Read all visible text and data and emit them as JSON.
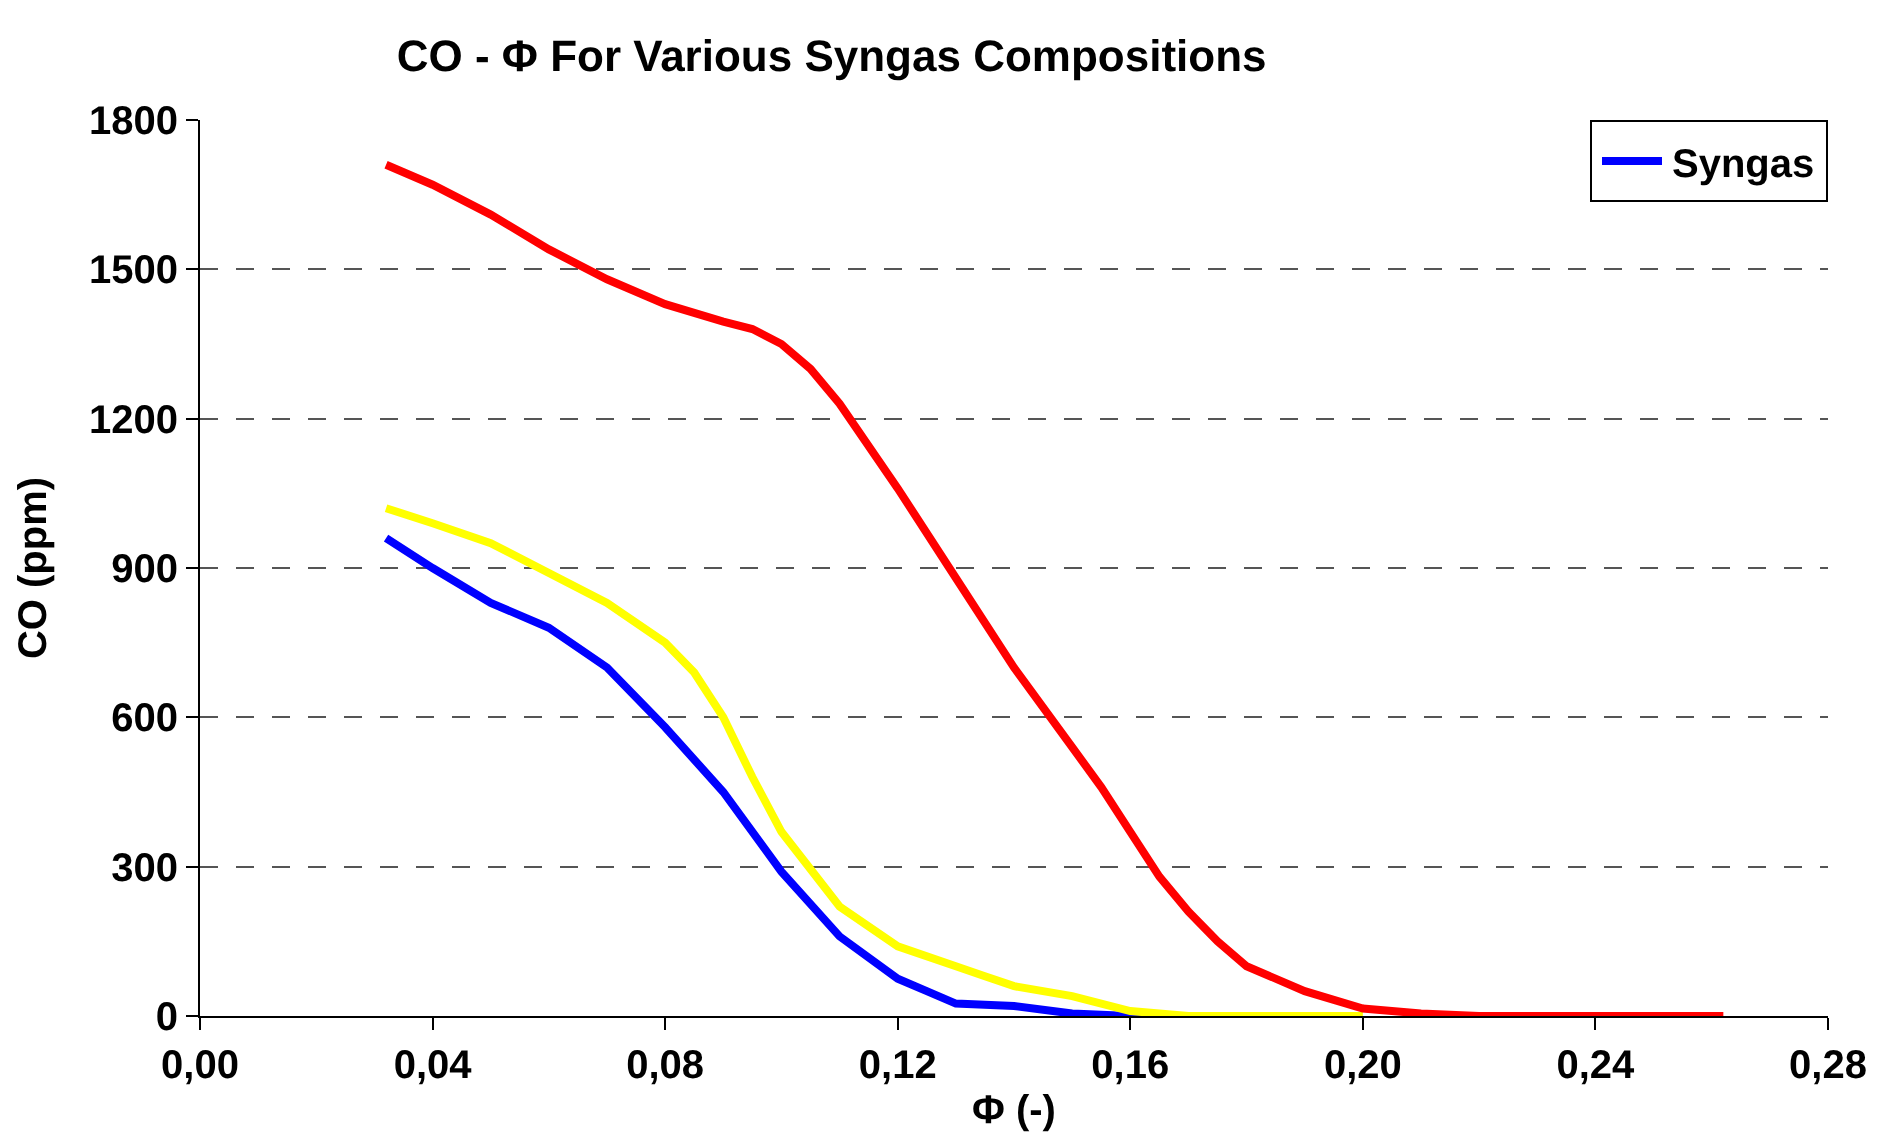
{
  "chart_data": {
    "type": "line",
    "title": "CO - Φ For Various Syngas Compositions",
    "xlabel": "Φ (-)",
    "ylabel": "CO (ppm)",
    "xlim": [
      0,
      0.28
    ],
    "ylim": [
      0,
      1800
    ],
    "xticks": [
      {
        "value": 0,
        "label": "0,00"
      },
      {
        "value": 0.04,
        "label": "0,04"
      },
      {
        "value": 0.08,
        "label": "0,08"
      },
      {
        "value": 0.12,
        "label": "0,12"
      },
      {
        "value": 0.16,
        "label": "0,16"
      },
      {
        "value": 0.2,
        "label": "0,20"
      },
      {
        "value": 0.24,
        "label": "0,24"
      },
      {
        "value": 0.28,
        "label": "0,28"
      }
    ],
    "yticks": [
      0,
      300,
      600,
      900,
      1200,
      1500,
      1800
    ],
    "grid": "y",
    "legend": "top right",
    "line_style": "solid",
    "marker": "none",
    "series": [
      {
        "name": "Syngas",
        "color": "#0000ff",
        "x": [
          0.032,
          0.04,
          0.05,
          0.06,
          0.07,
          0.08,
          0.09,
          0.1,
          0.11,
          0.12,
          0.125,
          0.13,
          0.14,
          0.15,
          0.16,
          0.17
        ],
        "values": [
          960,
          900,
          830,
          780,
          700,
          580,
          450,
          290,
          160,
          75,
          50,
          25,
          20,
          5,
          0,
          0
        ]
      },
      {
        "color": "#ffff00",
        "x": [
          0.032,
          0.04,
          0.05,
          0.06,
          0.07,
          0.08,
          0.085,
          0.09,
          0.095,
          0.1,
          0.11,
          0.12,
          0.13,
          0.135,
          0.14,
          0.15,
          0.16,
          0.17,
          0.18,
          0.19,
          0.2
        ],
        "values": [
          1020,
          990,
          950,
          890,
          830,
          750,
          690,
          600,
          480,
          370,
          220,
          140,
          100,
          80,
          60,
          40,
          10,
          0,
          0,
          0,
          0
        ]
      },
      {
        "color": "#ff0000",
        "x": [
          0.032,
          0.04,
          0.05,
          0.06,
          0.07,
          0.08,
          0.09,
          0.095,
          0.1,
          0.105,
          0.11,
          0.12,
          0.13,
          0.14,
          0.15,
          0.155,
          0.16,
          0.165,
          0.17,
          0.175,
          0.18,
          0.19,
          0.2,
          0.21,
          0.22,
          0.24,
          0.262
        ],
        "values": [
          1710,
          1670,
          1610,
          1540,
          1480,
          1430,
          1395,
          1380,
          1350,
          1300,
          1230,
          1060,
          880,
          700,
          540,
          460,
          370,
          280,
          210,
          150,
          100,
          50,
          15,
          5,
          0,
          0,
          0
        ]
      }
    ]
  }
}
